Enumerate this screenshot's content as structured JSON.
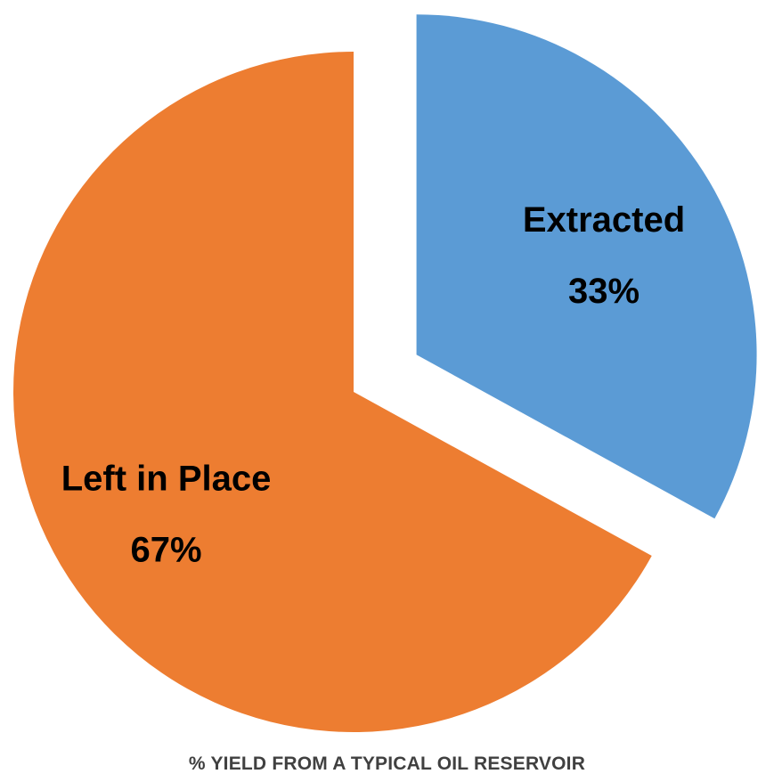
{
  "chart_data": {
    "type": "pie",
    "title": "% YIELD FROM A TYPICAL OIL RESERVOIR",
    "legend": "none",
    "start_angle_deg": 0,
    "slices": [
      {
        "label": "Extracted",
        "value": 33,
        "value_label": "33%",
        "color": "#5b9bd5",
        "exploded": true
      },
      {
        "label": "Left in Place",
        "value": 67,
        "value_label": "67%",
        "color": "#ed7d31",
        "exploded": false
      }
    ]
  }
}
